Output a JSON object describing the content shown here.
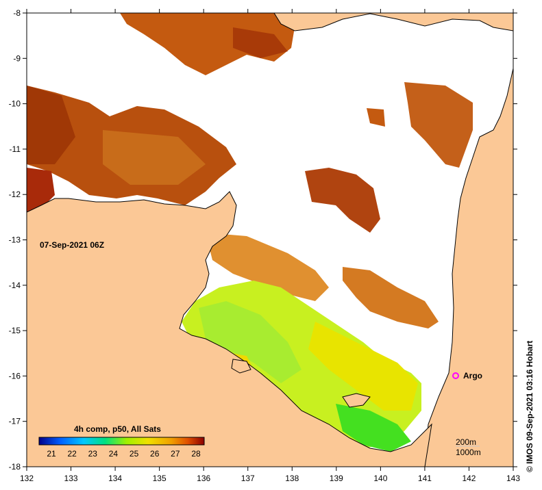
{
  "map": {
    "timestamp_label": "07-Sep-2021 06Z",
    "lon_ticks": [
      "132",
      "133",
      "134",
      "135",
      "136",
      "137",
      "138",
      "139",
      "140",
      "141",
      "142",
      "143"
    ],
    "lat_ticks": [
      "-8",
      "-9",
      "-10",
      "-11",
      "-12",
      "-13",
      "-14",
      "-15",
      "-16",
      "-17",
      "-18"
    ],
    "argo_label": "Argo",
    "isobaths": [
      "200m",
      "1000m"
    ],
    "credit": "© IMOS 09-Sep-2021 03:16 Hobart"
  },
  "colorbar": {
    "title": "4h comp, p50, All Sats",
    "ticks": [
      "21",
      "22",
      "23",
      "24",
      "25",
      "26",
      "27",
      "28"
    ],
    "colors": [
      "#00008b",
      "#0060ff",
      "#00c8ff",
      "#00e080",
      "#a0f000",
      "#f0e000",
      "#f0a000",
      "#e05000",
      "#8b0000"
    ]
  },
  "colors": {
    "land": "#fbc896",
    "ocean_no_data": "#ffffff",
    "warm_dark": "#a83a08",
    "warm": "#d06a14",
    "warm_light": "#e09030",
    "cool_yellow": "#e8e800",
    "cool_green": "#b8ee20",
    "cool_bright_green": "#40e020",
    "argo_marker": "#ff00ff"
  }
}
